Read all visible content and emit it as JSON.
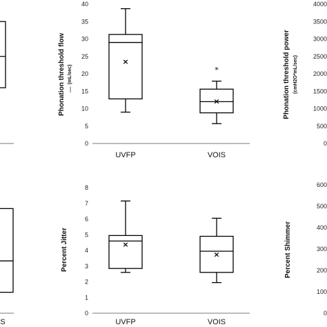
{
  "chart_data": [
    {
      "type": "box",
      "panel": "top-left-partial",
      "categories": [
        ""
      ],
      "boxes": [
        {
          "q1": 8,
          "median": 12.5,
          "q3": 17.5
        }
      ],
      "note": "panel cropped at left edge; only right edge of one box visible"
    },
    {
      "type": "box",
      "panel": "top-middle",
      "ylabel": "Phonation threshold flow",
      "ylabel_unit": "(mL/sec)",
      "ylim": [
        0,
        40
      ],
      "yticks": [
        "0",
        "5",
        "10",
        "15",
        "20",
        "25",
        "30",
        "35",
        "40"
      ],
      "categories": [
        "UVFP",
        "VOIS"
      ],
      "boxes": [
        {
          "min": 9,
          "q1": 12.8,
          "median": 29,
          "q3": 31.3,
          "max": 38.7,
          "mean": 23.6
        },
        {
          "min": 5.7,
          "q1": 8.8,
          "median": 12,
          "q3": 15.6,
          "max": 17.9,
          "mean": 12.2,
          "outlier": 21.4
        }
      ],
      "annotation": "|"
    },
    {
      "type": "box",
      "panel": "top-right-partial",
      "ylabel": "Phonation threshold power",
      "ylabel_unit": "(cmH2O*mL/sec)",
      "yticks": [
        "0",
        "500",
        "1000",
        "1500",
        "2000",
        "2500",
        "3000",
        "3500",
        "4000"
      ]
    },
    {
      "type": "box",
      "panel": "bottom-left-partial",
      "categories": [
        "S"
      ],
      "boxes": [
        {
          "q1": 1,
          "median": 2.5,
          "q3": 5
        }
      ],
      "note": "panel cropped at left edge"
    },
    {
      "type": "box",
      "panel": "bottom-middle",
      "ylabel": "Percent Jitter",
      "ylim": [
        0,
        8
      ],
      "yticks": [
        "0",
        "1",
        "2",
        "3",
        "4",
        "5",
        "6",
        "7",
        "8"
      ],
      "categories": [
        "UVFP",
        "VOIS"
      ],
      "boxes": [
        {
          "min": 2.6,
          "q1": 2.85,
          "median": 4.6,
          "q3": 4.95,
          "max": 7.15,
          "mean": 4.4
        },
        {
          "min": 1.95,
          "q1": 2.6,
          "median": 3.95,
          "q3": 4.9,
          "max": 6.05,
          "mean": 3.75
        }
      ]
    },
    {
      "type": "box",
      "panel": "bottom-right-partial",
      "ylabel": "Percent Shimmer",
      "yticks": [
        "0",
        "100",
        "200",
        "300",
        "400",
        "500",
        "600"
      ]
    }
  ]
}
